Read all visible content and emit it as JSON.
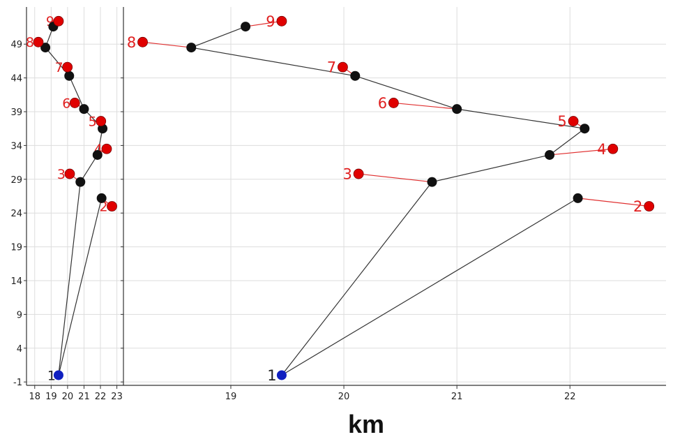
{
  "chart_data": {
    "type": "scatter",
    "xlabel": "km",
    "ylabel": "",
    "title": "",
    "colors": {
      "measured_point": "#e00000",
      "estimated_point": "#111111",
      "start_point": "#1020c0",
      "offset_line": "#e03030",
      "path_line": "#333333",
      "label": "#e02020",
      "grid": "#dddddd"
    },
    "start": {
      "label": "1",
      "x": 19.45,
      "y": 0
    },
    "points": [
      {
        "label": "2",
        "measured": {
          "x": 22.7,
          "y": 25.0
        },
        "estimated": {
          "x": 22.07,
          "y": 26.2
        }
      },
      {
        "label": "3",
        "measured": {
          "x": 20.13,
          "y": 29.8
        },
        "estimated": {
          "x": 20.78,
          "y": 28.6
        }
      },
      {
        "label": "4",
        "measured": {
          "x": 22.38,
          "y": 33.5
        },
        "estimated": {
          "x": 21.82,
          "y": 32.6
        }
      },
      {
        "label": "5",
        "measured": {
          "x": 22.03,
          "y": 37.6
        },
        "estimated": {
          "x": 22.13,
          "y": 36.5
        }
      },
      {
        "label": "6",
        "measured": {
          "x": 20.44,
          "y": 40.3
        },
        "estimated": {
          "x": 21.0,
          "y": 39.4
        }
      },
      {
        "label": "7",
        "measured": {
          "x": 19.99,
          "y": 45.6
        },
        "estimated": {
          "x": 20.1,
          "y": 44.3
        }
      },
      {
        "label": "8",
        "measured": {
          "x": 18.22,
          "y": 49.3
        },
        "estimated": {
          "x": 18.65,
          "y": 48.5
        }
      },
      {
        "label": "9",
        "measured": {
          "x": 19.45,
          "y": 52.4
        },
        "estimated": {
          "x": 19.13,
          "y": 51.6
        }
      }
    ],
    "path_segments": [
      [
        "1",
        "2"
      ],
      [
        "1",
        "3"
      ],
      [
        "3",
        "4"
      ],
      [
        "4",
        "5"
      ],
      [
        "5",
        "6"
      ],
      [
        "6",
        "7"
      ],
      [
        "7",
        "8"
      ],
      [
        "8",
        "9"
      ]
    ],
    "panels": [
      {
        "name": "overview",
        "xlim": [
          17.5,
          23.4
        ],
        "ylim": [
          -1.5,
          54.5
        ],
        "xticks": [
          18,
          19,
          20,
          21,
          22,
          23
        ],
        "xtick_labels": [
          "18",
          "19",
          "20",
          "21",
          "22",
          "23"
        ],
        "yticks": [
          -1,
          4,
          9,
          14,
          19,
          24,
          29,
          34,
          39,
          44,
          49
        ],
        "ytick_labels": [
          "-1",
          "4",
          "9",
          "14",
          "19",
          "24",
          "29",
          "34",
          "39",
          "44",
          "49"
        ]
      },
      {
        "name": "detail",
        "xlim": [
          18.05,
          22.85
        ],
        "ylim": [
          -1.5,
          54.5
        ],
        "xticks": [
          19,
          20,
          21,
          22
        ],
        "xtick_labels": [
          "19",
          "20",
          "21",
          "22"
        ],
        "yticks": [
          -1,
          4,
          9,
          14,
          19,
          24,
          29,
          34,
          39,
          44,
          49
        ],
        "ytick_labels": [],
        "show_y_tick_marks": true
      }
    ],
    "grid": true
  }
}
